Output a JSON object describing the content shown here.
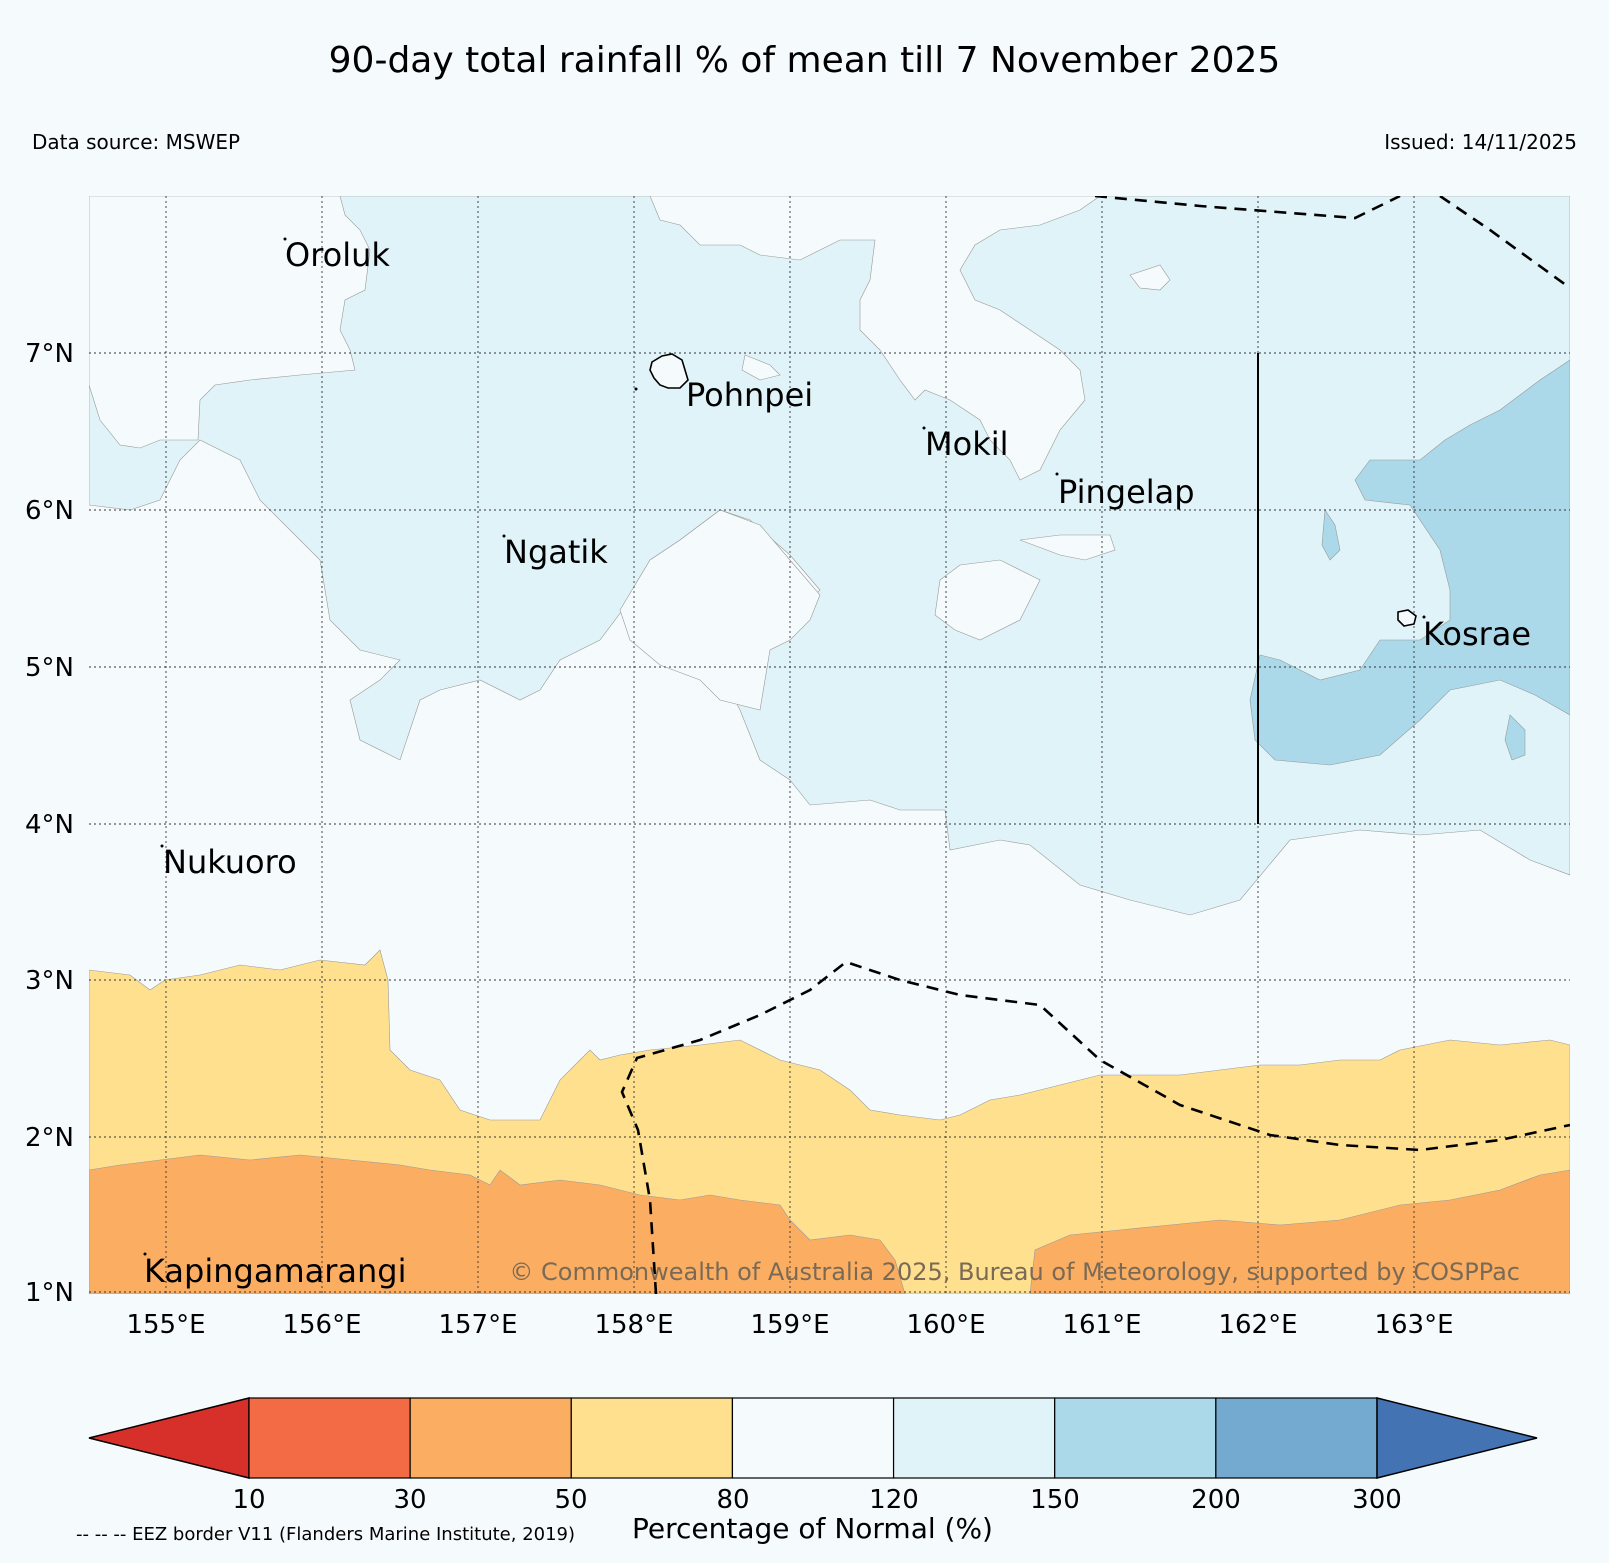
{
  "title": "90-day total rainfall % of mean till 7 November 2025",
  "data_source": "Data source: MSWEP",
  "issued": "Issued: 14/11/2025",
  "lat_labels": [
    "7°N",
    "6°N",
    "5°N",
    "4°N",
    "3°N",
    "2°N",
    "1°N"
  ],
  "lon_labels": [
    "155°E",
    "156°E",
    "157°E",
    "158°E",
    "159°E",
    "160°E",
    "161°E",
    "162°E",
    "163°E"
  ],
  "places": {
    "oroluk": "Oroluk",
    "pohnpei": "Pohnpei",
    "mokil": "Mokil",
    "pingelap": "Pingelap",
    "ngatik": "Ngatik",
    "kosrae": "Kosrae",
    "nukuoro": "Nukuoro",
    "kapingamarangi": "Kapingamarangi"
  },
  "copyright": "© Commonwealth of Australia 2025, Bureau of Meteorology, supported by COSPPac",
  "colorbar": {
    "title": "Percentage of Normal (%)",
    "ticks": [
      "10",
      "30",
      "50",
      "80",
      "120",
      "150",
      "200",
      "300"
    ],
    "colors": [
      "#d7302a",
      "#f26b44",
      "#fbae62",
      "#fee08f",
      "#f5fafc",
      "#e0f3f8",
      "#abd9e9",
      "#74aad0",
      "#4373b2"
    ]
  },
  "eez_note": "-- -- -- EEZ border V11 (Flanders Marine Institute, 2019)"
}
